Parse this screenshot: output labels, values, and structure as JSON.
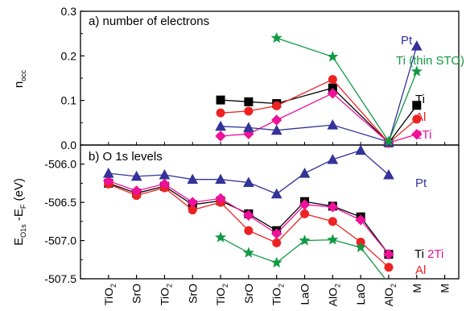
{
  "chart_data": [
    {
      "type": "line",
      "panel_label": "a) number of electrons",
      "ylabel": "n_occ",
      "ylabel_main": "n",
      "ylabel_sub": "occ",
      "ylim": [
        0,
        0.3
      ],
      "yticks": [
        "0.0",
        "0.1",
        "0.2",
        "0.3"
      ],
      "series": [
        {
          "name": "Ti",
          "color": "#000000",
          "marker": "square",
          "points": [
            [
              1,
              0.101
            ],
            [
              2,
              0.097
            ],
            [
              3,
              0.093
            ],
            [
              4,
              0.128
            ],
            [
              5,
              0.005
            ],
            [
              6,
              0.089
            ]
          ]
        },
        {
          "name": "Al",
          "color": "#ee2222",
          "marker": "circle",
          "points": [
            [
              1,
              0.072
            ],
            [
              2,
              0.076
            ],
            [
              3,
              0.088
            ],
            [
              4,
              0.147
            ],
            [
              5,
              0.005
            ],
            [
              6,
              0.058
            ]
          ]
        },
        {
          "name": "2Ti",
          "color": "#ee1199",
          "marker": "diamond",
          "points": [
            [
              1,
              0.02
            ],
            [
              2,
              0.025
            ],
            [
              3,
              0.056
            ],
            [
              4,
              0.116
            ],
            [
              5,
              0.005
            ],
            [
              6,
              0.024
            ]
          ]
        },
        {
          "name": "Pt",
          "color": "#333399",
          "marker": "triangle",
          "points": [
            [
              1,
              0.042
            ],
            [
              2,
              0.039
            ],
            [
              3,
              0.033
            ],
            [
              4,
              0.045
            ],
            [
              5,
              0.007
            ],
            [
              6,
              0.222
            ]
          ]
        },
        {
          "name": "Ti (thin STO)",
          "color": "#119944",
          "marker": "star",
          "points": [
            [
              3,
              0.24
            ],
            [
              4,
              0.198
            ],
            [
              5,
              0.008
            ],
            [
              6,
              0.165
            ]
          ]
        }
      ]
    },
    {
      "type": "line",
      "panel_label": "b) O 1s levels",
      "ylabel": "E_O1s - E_F (eV)",
      "ylabel_main": "E",
      "ylabel_sub1": "O1s",
      "ylabel_mid": " -E",
      "ylabel_sub2": "F",
      "ylabel_tail": " (eV)",
      "ylim": [
        -507.5,
        -505.75
      ],
      "yticks": [
        "-506.0",
        "-506.5",
        "-507.0",
        "-507.5"
      ],
      "series": [
        {
          "name": "Ti",
          "color": "#000000",
          "marker": "square",
          "points": [
            [
              1,
              -506.25
            ],
            [
              2,
              -506.38
            ],
            [
              3,
              -506.29
            ],
            [
              4,
              -506.53
            ],
            [
              5,
              -506.48
            ],
            [
              6,
              -506.65
            ],
            [
              7,
              -506.87
            ],
            [
              8,
              -506.49
            ],
            [
              9,
              -506.55
            ],
            [
              10,
              -506.69
            ],
            [
              11,
              -507.18
            ]
          ]
        },
        {
          "name": "Al",
          "color": "#ee2222",
          "marker": "circle",
          "points": [
            [
              1,
              -506.26
            ],
            [
              2,
              -506.41
            ],
            [
              3,
              -506.31
            ],
            [
              4,
              -506.6
            ],
            [
              5,
              -506.5
            ],
            [
              6,
              -506.87
            ],
            [
              7,
              -507.03
            ],
            [
              8,
              -506.65
            ],
            [
              9,
              -506.75
            ],
            [
              10,
              -507.02
            ],
            [
              11,
              -507.35
            ]
          ]
        },
        {
          "name": "2Ti",
          "color": "#ee1199",
          "marker": "diamond",
          "points": [
            [
              1,
              -506.22
            ],
            [
              2,
              -506.35
            ],
            [
              3,
              -506.26
            ],
            [
              4,
              -506.5
            ],
            [
              5,
              -506.45
            ],
            [
              6,
              -506.67
            ],
            [
              7,
              -506.91
            ],
            [
              8,
              -506.53
            ],
            [
              9,
              -506.56
            ],
            [
              10,
              -506.73
            ],
            [
              11,
              -507.18
            ]
          ]
        },
        {
          "name": "Pt",
          "color": "#333399",
          "marker": "triangle",
          "points": [
            [
              1,
              -506.12
            ],
            [
              2,
              -506.16
            ],
            [
              3,
              -506.14
            ],
            [
              4,
              -506.2
            ],
            [
              5,
              -506.2
            ],
            [
              6,
              -506.24
            ],
            [
              7,
              -506.39
            ],
            [
              8,
              -506.12
            ],
            [
              9,
              -505.94
            ],
            [
              10,
              -505.82
            ],
            [
              11,
              -506.14
            ]
          ]
        },
        {
          "name": "Ti (thin STO)",
          "color": "#119944",
          "marker": "star",
          "points": [
            [
              5,
              -506.96
            ],
            [
              6,
              -507.16
            ],
            [
              7,
              -507.29
            ],
            [
              8,
              -507.0
            ],
            [
              9,
              -506.99
            ],
            [
              10,
              -507.09
            ],
            [
              11,
              -507.56
            ]
          ]
        }
      ],
      "legend_labels": [
        {
          "text": "Pt",
          "color": "#333399"
        },
        {
          "text": "Ti",
          "color": "#000000"
        },
        {
          "text": "2Ti",
          "color": "#ee1199"
        },
        {
          "text": "Al",
          "color": "#ee2222"
        }
      ]
    }
  ],
  "x_categories": [
    {
      "main": "TiO",
      "sub": "2"
    },
    {
      "main": "SrO",
      "sub": ""
    },
    {
      "main": "TiO",
      "sub": "2"
    },
    {
      "main": "SrO",
      "sub": ""
    },
    {
      "main": "TiO",
      "sub": "2"
    },
    {
      "main": "SrO",
      "sub": ""
    },
    {
      "main": "TiO",
      "sub": "2"
    },
    {
      "main": "LaO",
      "sub": ""
    },
    {
      "main": "AlO",
      "sub": "2"
    },
    {
      "main": "LaO",
      "sub": ""
    },
    {
      "main": "AlO",
      "sub": "2"
    },
    {
      "main": "M",
      "sub": ""
    },
    {
      "main": "M",
      "sub": ""
    }
  ],
  "panel_a_x_map": [
    5,
    6,
    7,
    9,
    11,
    12
  ],
  "panel_a_labels": [
    {
      "text": "Pt",
      "color": "#333399"
    },
    {
      "text": "Ti (thin STO)",
      "color": "#119944"
    },
    {
      "text": "Ti",
      "color": "#000000"
    },
    {
      "text": "Al",
      "color": "#ee2222"
    },
    {
      "text": "2Ti",
      "color": "#ee1199"
    }
  ]
}
